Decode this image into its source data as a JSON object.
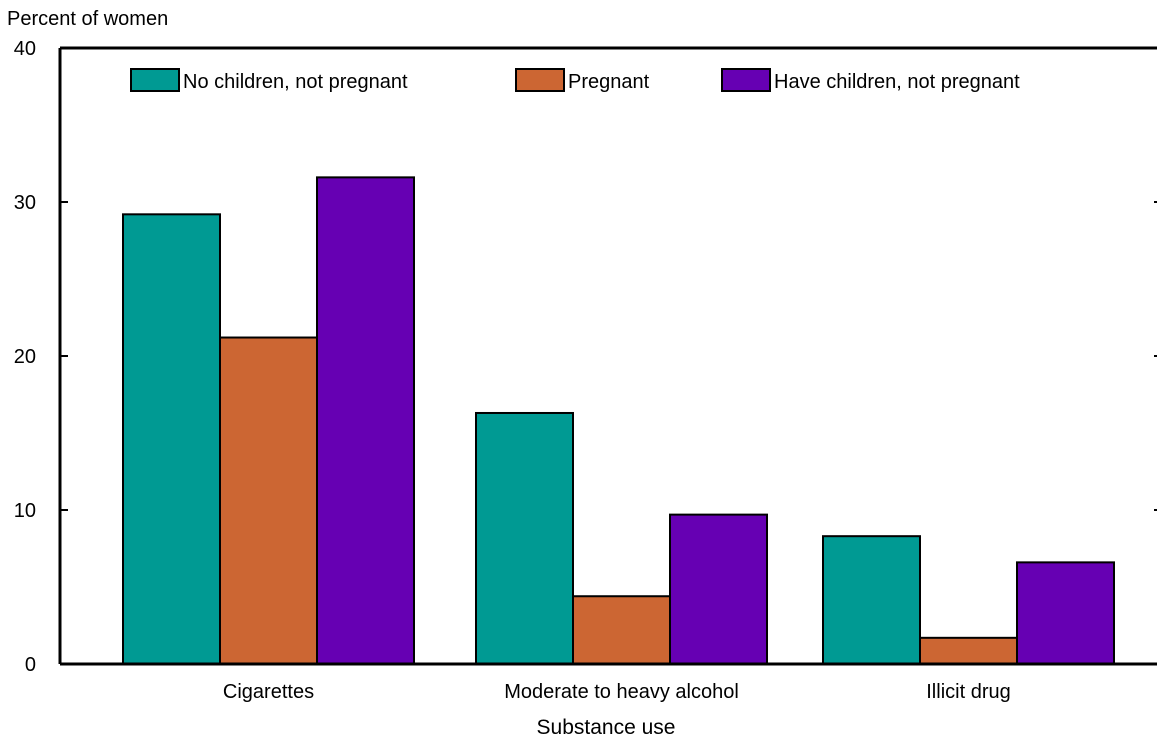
{
  "chart_data": {
    "type": "bar",
    "ylabel": "Percent of women",
    "xlabel": "Substance use",
    "categories": [
      "Cigarettes",
      "Moderate to heavy alcohol",
      "Illicit drug"
    ],
    "series": [
      {
        "name": "No children, not pregnant",
        "color": "#009a93",
        "values": [
          29.2,
          16.3,
          8.3
        ]
      },
      {
        "name": "Pregnant",
        "color": "#cc6633",
        "values": [
          21.2,
          4.4,
          1.7
        ]
      },
      {
        "name": "Have children, not pregnant",
        "color": "#6600b3",
        "values": [
          31.6,
          9.7,
          6.6
        ]
      }
    ],
    "ylim": [
      0,
      40
    ],
    "yticks": [
      0,
      10,
      20,
      30,
      40
    ],
    "legend_position": "top",
    "grid": false
  }
}
